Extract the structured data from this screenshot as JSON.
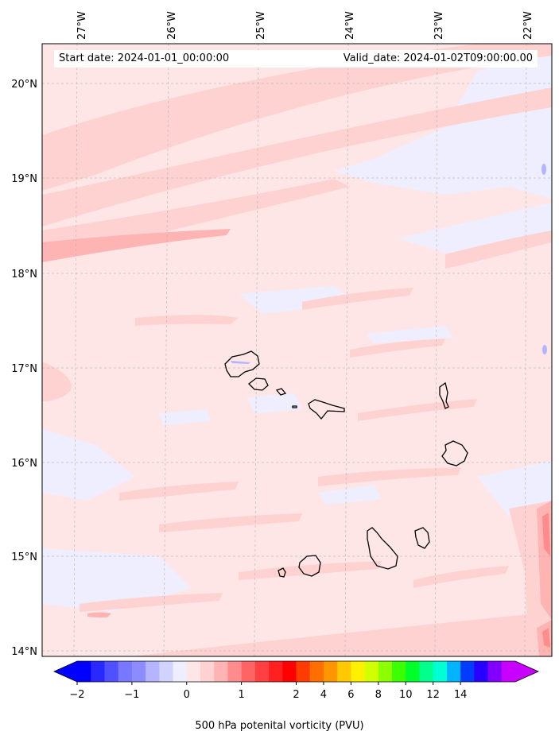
{
  "header": {
    "start_date": "Start date: 2024-01-01_00:00:00",
    "valid_date": "Valid_date: 2024-01-02T09:00:00.00"
  },
  "map": {
    "longitude_labels": [
      "27°W",
      "26°W",
      "25°W",
      "24°W",
      "23°W",
      "22°W"
    ],
    "latitude_labels": [
      "20°N",
      "19°N",
      "18°N",
      "17°N",
      "16°N",
      "15°N",
      "14°N"
    ],
    "background_color": "#ffe6e6"
  },
  "colorbar": {
    "title": "500 hPa potenital vorticity (PVU)",
    "tick_labels": [
      "−2",
      "−1",
      "0",
      "1",
      "2",
      "4",
      "6",
      "8",
      "10",
      "12",
      "14"
    ],
    "colors": [
      "#0000ff",
      "#2828ff",
      "#5050ff",
      "#7878ff",
      "#8c8cff",
      "#b4b4ff",
      "#d2d2ff",
      "#eeeeff",
      "#ffe6e6",
      "#ffd2d2",
      "#ffb4b4",
      "#ff8c8c",
      "#ff6464",
      "#ff4040",
      "#ff2020",
      "#ff0000",
      "#ff3c00",
      "#ff6e00",
      "#ff9600",
      "#ffc800",
      "#fff000",
      "#d2ff00",
      "#8cff00",
      "#3cff00",
      "#00ff28",
      "#00ff8c",
      "#00ffd2",
      "#00b4ff",
      "#003cff",
      "#2800ff",
      "#8200ff",
      "#c800ff"
    ],
    "extend_low_color": "#0000ff",
    "extend_high_color": "#c800ff"
  }
}
